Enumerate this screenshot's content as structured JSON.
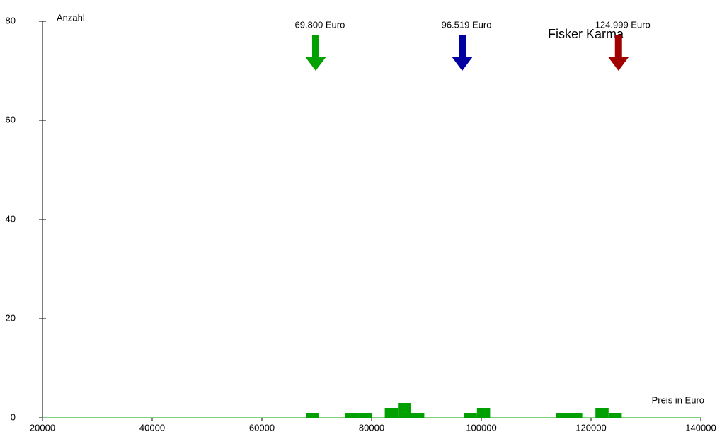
{
  "chart_data": {
    "type": "histogram",
    "title": "Fisker Karma",
    "xlabel": "Preis in Euro",
    "ylabel": "Anzahl",
    "bins": [
      68000,
      70400,
      72800,
      75200,
      77600,
      80000,
      82400,
      84800,
      87200,
      89600,
      92000,
      94400,
      96800,
      99200,
      101600,
      104000,
      106400,
      108800,
      111200,
      113600,
      116000,
      118400,
      120800,
      123200,
      125600
    ],
    "counts": [
      1,
      0,
      0,
      1,
      1,
      0,
      2,
      3,
      1,
      0,
      0,
      0,
      1,
      2,
      0,
      0,
      0,
      0,
      0,
      1,
      1,
      0,
      2,
      1
    ],
    "color": "#00a000",
    "xlim": [
      20000,
      140000
    ],
    "xticks": [
      20000,
      40000,
      60000,
      80000,
      100000,
      120000,
      140000
    ],
    "ylim": [
      0,
      80
    ],
    "yticks": [
      0,
      20,
      40,
      60,
      80
    ],
    "markers": [
      {
        "value": 69800,
        "label": "69.800 Euro",
        "color": "#00a000"
      },
      {
        "value": 96519,
        "label": "96.519 Euro",
        "color": "#0000a0"
      },
      {
        "value": 124999,
        "label": "124.999 Euro",
        "color": "#a00000"
      }
    ]
  }
}
